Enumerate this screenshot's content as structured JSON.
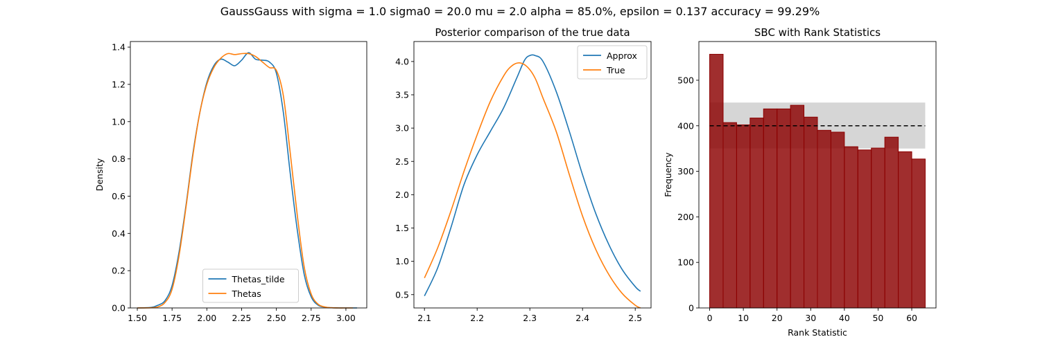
{
  "suptitle": "GaussGauss with sigma = 1.0 sigma0 = 20.0 mu = 2.0 alpha = 85.0%, epsilon = 0.137 accuracy = 99.29%",
  "chart_data": [
    {
      "type": "line",
      "title": "",
      "xlabel": "",
      "ylabel": "Density",
      "xlim": [
        1.45,
        3.15
      ],
      "ylim": [
        0,
        1.43
      ],
      "xticks": [
        1.5,
        1.75,
        2.0,
        2.25,
        2.5,
        2.75,
        3.0
      ],
      "xtick_labels": [
        "1.50",
        "1.75",
        "2.00",
        "2.25",
        "2.50",
        "2.75",
        "3.00"
      ],
      "yticks": [
        0.0,
        0.2,
        0.4,
        0.6,
        0.8,
        1.0,
        1.2,
        1.4
      ],
      "ytick_labels": [
        "0.0",
        "0.2",
        "0.4",
        "0.6",
        "0.8",
        "1.0",
        "1.2",
        "1.4"
      ],
      "legend": "lower center",
      "series": [
        {
          "name": "Thetas_tilde",
          "color": "#1f77b4",
          "x": [
            1.5,
            1.6,
            1.65,
            1.7,
            1.75,
            1.8,
            1.85,
            1.9,
            1.95,
            2.0,
            2.05,
            2.1,
            2.15,
            2.2,
            2.25,
            2.3,
            2.35,
            2.4,
            2.45,
            2.5,
            2.55,
            2.6,
            2.65,
            2.7,
            2.75,
            2.8,
            2.85,
            2.9,
            2.95,
            3.0,
            3.08
          ],
          "y": [
            0.0,
            0.003,
            0.015,
            0.04,
            0.12,
            0.3,
            0.55,
            0.83,
            1.05,
            1.21,
            1.3,
            1.335,
            1.32,
            1.3,
            1.33,
            1.37,
            1.335,
            1.33,
            1.32,
            1.26,
            1.05,
            0.72,
            0.42,
            0.18,
            0.06,
            0.015,
            0.004,
            0.001,
            0.0,
            0.0,
            0.0
          ]
        },
        {
          "name": "Thetas",
          "color": "#ff7f0e",
          "x": [
            1.5,
            1.6,
            1.65,
            1.7,
            1.75,
            1.8,
            1.85,
            1.9,
            1.95,
            2.0,
            2.05,
            2.1,
            2.15,
            2.2,
            2.25,
            2.3,
            2.35,
            2.4,
            2.45,
            2.5,
            2.55,
            2.6,
            2.65,
            2.7,
            2.75,
            2.8,
            2.85,
            2.9,
            2.95,
            3.0,
            3.05
          ],
          "y": [
            0.0,
            0.001,
            0.006,
            0.03,
            0.1,
            0.28,
            0.54,
            0.82,
            1.05,
            1.2,
            1.29,
            1.34,
            1.365,
            1.36,
            1.365,
            1.365,
            1.35,
            1.32,
            1.29,
            1.275,
            1.14,
            0.83,
            0.5,
            0.22,
            0.075,
            0.02,
            0.005,
            0.001,
            0.0,
            0.0,
            0.0
          ]
        }
      ]
    },
    {
      "type": "line",
      "title": "Posterior comparison of the true data",
      "xlabel": "",
      "ylabel": "",
      "xlim": [
        2.08,
        2.53
      ],
      "ylim": [
        0.3,
        4.3
      ],
      "xticks": [
        2.1,
        2.2,
        2.3,
        2.4,
        2.5
      ],
      "xtick_labels": [
        "2.1",
        "2.2",
        "2.3",
        "2.4",
        "2.5"
      ],
      "yticks": [
        0.5,
        1.0,
        1.5,
        2.0,
        2.5,
        3.0,
        3.5,
        4.0
      ],
      "ytick_labels": [
        "0.5",
        "1.0",
        "1.5",
        "2.0",
        "2.5",
        "3.0",
        "3.5",
        "4.0"
      ],
      "legend": "upper right",
      "series": [
        {
          "name": "Approx",
          "color": "#1f77b4",
          "x": [
            2.1,
            2.125,
            2.15,
            2.175,
            2.2,
            2.225,
            2.25,
            2.275,
            2.29,
            2.3,
            2.31,
            2.325,
            2.35,
            2.375,
            2.4,
            2.425,
            2.45,
            2.475,
            2.5,
            2.51
          ],
          "y": [
            0.48,
            0.9,
            1.5,
            2.15,
            2.6,
            2.95,
            3.3,
            3.75,
            4.02,
            4.09,
            4.09,
            4.0,
            3.55,
            2.95,
            2.3,
            1.72,
            1.25,
            0.88,
            0.62,
            0.55
          ]
        },
        {
          "name": "True",
          "color": "#ff7f0e",
          "x": [
            2.1,
            2.125,
            2.15,
            2.175,
            2.2,
            2.225,
            2.25,
            2.265,
            2.28,
            2.295,
            2.31,
            2.325,
            2.35,
            2.375,
            2.4,
            2.425,
            2.45,
            2.475,
            2.5,
            2.51
          ],
          "y": [
            0.75,
            1.2,
            1.75,
            2.35,
            2.9,
            3.4,
            3.78,
            3.93,
            3.98,
            3.92,
            3.75,
            3.45,
            2.95,
            2.3,
            1.68,
            1.18,
            0.8,
            0.52,
            0.34,
            0.3
          ]
        }
      ]
    },
    {
      "type": "bar",
      "title": "SBC with Rank Statistics",
      "xlabel": "Rank Statistic",
      "ylabel": "Frequency",
      "xlim": [
        -3.2,
        67.2
      ],
      "ylim": [
        0,
        585
      ],
      "xticks": [
        0,
        10,
        20,
        30,
        40,
        50,
        60
      ],
      "xtick_labels": [
        "0",
        "10",
        "20",
        "30",
        "40",
        "50",
        "60"
      ],
      "yticks": [
        0,
        100,
        200,
        300,
        400,
        500
      ],
      "ytick_labels": [
        "0",
        "100",
        "200",
        "300",
        "400",
        "500"
      ],
      "bin_edges": [
        0,
        4,
        8,
        12,
        16,
        20,
        24,
        28,
        32,
        36,
        40,
        44,
        48,
        52,
        56,
        60,
        64
      ],
      "values": [
        557,
        407,
        402,
        417,
        437,
        437,
        445,
        419,
        390,
        386,
        354,
        347,
        351,
        375,
        343,
        327
      ],
      "bar_color": "#8b0000",
      "expected_line": 400,
      "band": [
        350,
        451
      ],
      "band_color": "#c0c0c0"
    }
  ]
}
